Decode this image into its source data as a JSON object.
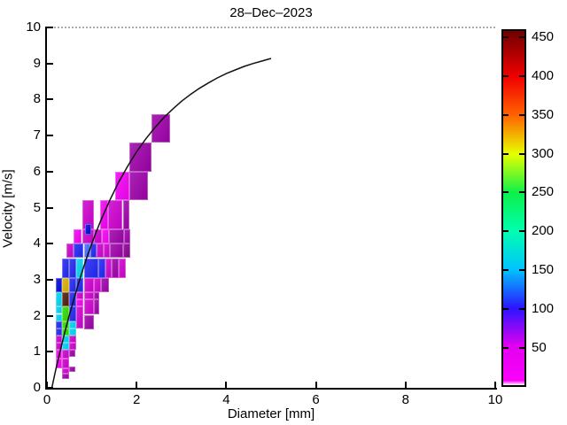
{
  "title": "28–Dec–2023",
  "axes": {
    "xlabel": "Diameter [mm]",
    "ylabel": "Velocity [m/s]",
    "xlim": [
      0,
      10
    ],
    "ylim": [
      0,
      10
    ],
    "xticks": [
      0,
      2,
      4,
      6,
      8,
      10
    ],
    "yticks": [
      0,
      1,
      2,
      3,
      4,
      5,
      6,
      7,
      8,
      9,
      10
    ]
  },
  "colorbar": {
    "min": 0,
    "max": 460,
    "ticks": [
      50,
      100,
      150,
      200,
      250,
      300,
      350,
      400,
      450
    ],
    "gradient_stops": [
      [
        0.0,
        "#ffffff"
      ],
      [
        0.013,
        "#fb00fb"
      ],
      [
        0.109,
        "#e300ef"
      ],
      [
        0.217,
        "#2b14ff"
      ],
      [
        0.326,
        "#00c3ff"
      ],
      [
        0.435,
        "#00ffb0"
      ],
      [
        0.543,
        "#0cf04a"
      ],
      [
        0.652,
        "#e8ff00"
      ],
      [
        0.761,
        "#ff6400"
      ],
      [
        0.87,
        "#f00000"
      ],
      [
        0.957,
        "#9c0000"
      ],
      [
        1.0,
        "#700000"
      ]
    ]
  },
  "chart_data": {
    "type": "heatmap",
    "title": "28–Dec–2023",
    "xlabel": "Diameter [mm]",
    "ylabel": "Velocity [m/s]",
    "xlim": [
      0,
      10
    ],
    "ylim": [
      0,
      10
    ],
    "grid": false,
    "legend": "colorbar right, counts 0–460",
    "palette": {
      "bm": "#f200f2",
      "mg": "#cc00cc",
      "pu": "#9c00a8",
      "dp": "#8a0090",
      "bl": "#2026f0",
      "db": "#0008d8",
      "lb": "#4868ff",
      "cy": "#00d2f0",
      "gr": "#2fd800",
      "ye": "#d8ae00",
      "br": "#4f1d0a"
    },
    "cells": [
      [
        0.19,
        0.34,
        0.55,
        0.8,
        "bm"
      ],
      [
        0.19,
        0.34,
        0.8,
        1.05,
        "bm"
      ],
      [
        0.19,
        0.34,
        1.05,
        1.25,
        "mg"
      ],
      [
        0.19,
        0.34,
        1.25,
        1.45,
        "mg"
      ],
      [
        0.19,
        0.34,
        1.45,
        1.65,
        "bl"
      ],
      [
        0.19,
        0.34,
        1.65,
        1.85,
        "bl"
      ],
      [
        0.19,
        0.34,
        1.85,
        2.05,
        "cy"
      ],
      [
        0.19,
        0.34,
        2.05,
        2.25,
        "cy"
      ],
      [
        0.19,
        0.34,
        2.25,
        2.65,
        "cy"
      ],
      [
        0.19,
        0.34,
        2.65,
        3.05,
        "db"
      ],
      [
        0.34,
        0.5,
        0.25,
        0.4,
        "pu"
      ],
      [
        0.34,
        0.5,
        0.4,
        0.55,
        "mg"
      ],
      [
        0.34,
        0.5,
        0.55,
        0.8,
        "mg"
      ],
      [
        0.34,
        0.5,
        0.8,
        1.05,
        "mg"
      ],
      [
        0.34,
        0.5,
        1.05,
        1.25,
        "cy"
      ],
      [
        0.34,
        0.5,
        1.25,
        1.45,
        "cy"
      ],
      [
        0.34,
        0.5,
        1.45,
        1.65,
        "gr"
      ],
      [
        0.34,
        0.5,
        1.65,
        1.85,
        "gr"
      ],
      [
        0.34,
        0.5,
        1.85,
        2.25,
        "gr"
      ],
      [
        0.34,
        0.5,
        2.25,
        2.65,
        "br"
      ],
      [
        0.34,
        0.5,
        2.65,
        3.05,
        "ye"
      ],
      [
        0.34,
        0.5,
        3.05,
        3.6,
        "bl"
      ],
      [
        0.5,
        0.63,
        0.45,
        0.6,
        "pu"
      ],
      [
        0.5,
        0.63,
        0.85,
        1.05,
        "pu"
      ],
      [
        0.5,
        0.66,
        1.05,
        1.25,
        "mg"
      ],
      [
        0.5,
        0.66,
        1.25,
        1.45,
        "mg"
      ],
      [
        0.5,
        0.66,
        1.45,
        1.65,
        "cy"
      ],
      [
        0.5,
        0.66,
        1.65,
        1.85,
        "cy"
      ],
      [
        0.5,
        0.66,
        1.85,
        2.25,
        "bl"
      ],
      [
        0.5,
        0.66,
        2.25,
        2.65,
        "bl"
      ],
      [
        0.5,
        0.66,
        2.65,
        3.05,
        "bl"
      ],
      [
        0.5,
        0.66,
        3.05,
        3.6,
        "bl"
      ],
      [
        0.66,
        0.82,
        1.65,
        2.25,
        "mg"
      ],
      [
        0.66,
        0.82,
        2.25,
        2.45,
        "bm"
      ],
      [
        0.66,
        0.82,
        2.45,
        2.65,
        "mg"
      ],
      [
        0.66,
        0.82,
        2.65,
        3.05,
        "bl"
      ],
      [
        0.66,
        0.82,
        3.05,
        3.6,
        "cy"
      ],
      [
        0.82,
        1.04,
        1.62,
        2.02,
        "pu"
      ],
      [
        0.82,
        1.04,
        2.05,
        2.45,
        "mg"
      ],
      [
        0.82,
        1.04,
        2.45,
        2.65,
        "mg"
      ],
      [
        1.04,
        1.16,
        2.45,
        2.65,
        "pu"
      ],
      [
        0.82,
        1.04,
        2.65,
        3.05,
        "mg"
      ],
      [
        0.82,
        1.14,
        3.05,
        3.6,
        "bl"
      ],
      [
        1.04,
        1.16,
        2.05,
        2.45,
        "pu"
      ],
      [
        1.04,
        1.2,
        2.65,
        3.05,
        "mg"
      ],
      [
        1.2,
        1.38,
        2.65,
        3.05,
        "pu"
      ],
      [
        1.14,
        1.3,
        3.05,
        3.6,
        "bl"
      ],
      [
        1.3,
        1.45,
        3.05,
        3.6,
        "mg"
      ],
      [
        1.45,
        1.6,
        3.05,
        3.6,
        "pu"
      ],
      [
        1.6,
        1.75,
        3.05,
        3.6,
        "mg"
      ],
      [
        0.43,
        0.6,
        3.6,
        4.0,
        "mg"
      ],
      [
        0.6,
        0.82,
        3.6,
        4.0,
        "bl"
      ],
      [
        0.82,
        0.97,
        3.6,
        4.0,
        "lb"
      ],
      [
        0.97,
        1.1,
        3.6,
        4.0,
        "bl"
      ],
      [
        1.1,
        1.26,
        3.6,
        4.0,
        "mg"
      ],
      [
        1.26,
        1.41,
        3.6,
        4.0,
        "mg"
      ],
      [
        1.41,
        1.7,
        3.6,
        4.0,
        "pu"
      ],
      [
        1.7,
        1.85,
        3.6,
        4.0,
        "dp"
      ],
      [
        0.6,
        0.78,
        4.0,
        4.4,
        "bm"
      ],
      [
        0.78,
        1.04,
        4.0,
        4.4,
        "mg"
      ],
      [
        1.04,
        1.22,
        4.0,
        4.4,
        "mg"
      ],
      [
        1.22,
        1.38,
        4.0,
        4.4,
        "bm"
      ],
      [
        1.38,
        1.72,
        4.0,
        4.4,
        "pu"
      ],
      [
        1.72,
        1.86,
        4.0,
        4.4,
        "pu"
      ],
      [
        0.79,
        1.04,
        4.4,
        5.2,
        "mg"
      ],
      [
        1.18,
        1.37,
        4.4,
        5.2,
        "bm"
      ],
      [
        1.37,
        1.69,
        4.4,
        5.2,
        "mg"
      ],
      [
        1.69,
        1.84,
        4.4,
        5.2,
        "pu"
      ],
      [
        1.53,
        1.84,
        5.2,
        6.0,
        "bm"
      ],
      [
        1.84,
        2.26,
        5.2,
        6.0,
        "pu"
      ],
      [
        1.84,
        2.34,
        6.0,
        6.8,
        "pu"
      ],
      [
        2.34,
        2.75,
        6.8,
        7.6,
        "pu"
      ],
      [
        0.84,
        0.98,
        4.25,
        4.55,
        "db"
      ]
    ],
    "curve": {
      "color": "#111111",
      "points": [
        [
          0.11,
          0.01
        ],
        [
          0.2,
          0.52
        ],
        [
          0.3,
          1.05
        ],
        [
          0.4,
          1.55
        ],
        [
          0.5,
          2.02
        ],
        [
          0.6,
          2.46
        ],
        [
          0.7,
          2.88
        ],
        [
          0.8,
          3.28
        ],
        [
          0.9,
          3.65
        ],
        [
          1.0,
          4.0
        ],
        [
          1.1,
          4.33
        ],
        [
          1.2,
          4.64
        ],
        [
          1.4,
          5.2
        ],
        [
          1.6,
          5.71
        ],
        [
          1.8,
          6.15
        ],
        [
          2.0,
          6.55
        ],
        [
          2.2,
          6.9
        ],
        [
          2.4,
          7.21
        ],
        [
          2.6,
          7.49
        ],
        [
          2.8,
          7.73
        ],
        [
          3.0,
          7.95
        ],
        [
          3.2,
          8.14
        ],
        [
          3.4,
          8.31
        ],
        [
          3.6,
          8.46
        ],
        [
          3.8,
          8.6
        ],
        [
          4.0,
          8.72
        ],
        [
          4.2,
          8.82
        ],
        [
          4.4,
          8.92
        ],
        [
          4.6,
          9.0
        ],
        [
          4.8,
          9.07
        ],
        [
          5.0,
          9.14
        ]
      ]
    }
  }
}
